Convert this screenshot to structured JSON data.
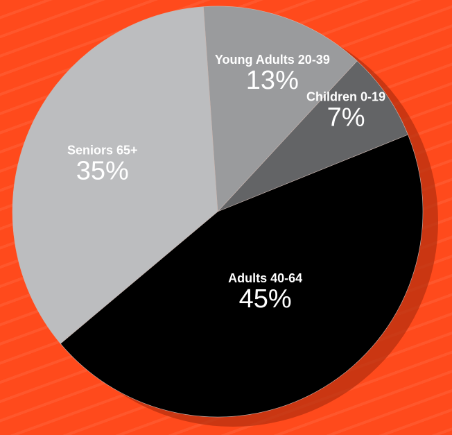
{
  "chart_data": {
    "type": "pie",
    "title": "",
    "slices": [
      {
        "label": "Young Adults 20-39",
        "value": 13,
        "value_label": "13%",
        "color": "#9a9b9d"
      },
      {
        "label": "Children 0-19",
        "value": 7,
        "value_label": "7%",
        "color": "#636466"
      },
      {
        "label": "Adults 40-64",
        "value": 45,
        "value_label": "45%",
        "color": "#000000"
      },
      {
        "label": "Seniors 65+",
        "value": 35,
        "value_label": "35%",
        "color": "#bcbdbf"
      }
    ],
    "background_color": "#ff4a1c",
    "shadow_color": "#b8300f"
  }
}
